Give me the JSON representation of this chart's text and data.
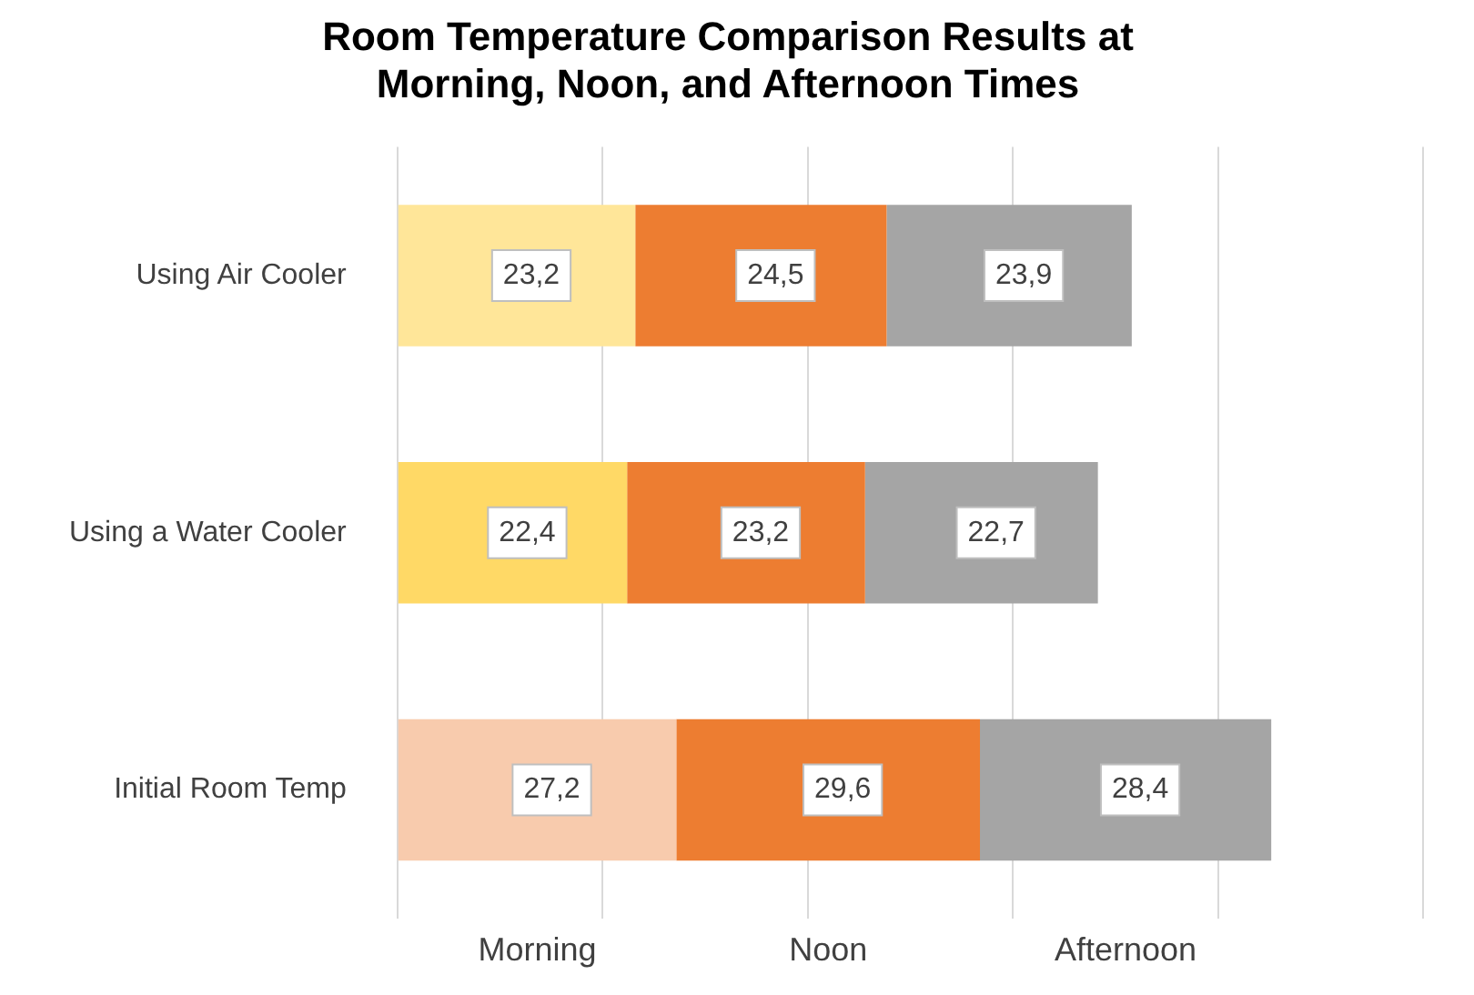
{
  "chart_data": {
    "type": "bar",
    "orientation": "horizontal",
    "stacked": true,
    "title": "Room Temperature Comparison Results at\nMorning, Noon, and Afternoon Times",
    "categories": [
      "Using Air Cooler",
      "Using a Water Cooler",
      "Initial Room Temp"
    ],
    "series": [
      {
        "name": "Morning",
        "colors": [
          "#ffe699",
          "#ffd966",
          "#f8cbad"
        ],
        "values": [
          23.2,
          22.4,
          27.2
        ],
        "value_labels": [
          "23,2",
          "22,4",
          "27,2"
        ]
      },
      {
        "name": "Noon",
        "color": "#ed7d31",
        "values": [
          24.5,
          23.2,
          29.6
        ],
        "value_labels": [
          "24,5",
          "23,2",
          "29,6"
        ]
      },
      {
        "name": "Afternoon",
        "color": "#a5a5a5",
        "values": [
          23.9,
          22.7,
          28.4
        ],
        "value_labels": [
          "23,9",
          "22,7",
          "28,4"
        ]
      }
    ],
    "xlim": [
      0,
      100
    ],
    "xticks": [
      {
        "value": 0,
        "label": null
      },
      {
        "value": 20,
        "label": null
      },
      {
        "value": 40,
        "label": null
      },
      {
        "value": 60,
        "label": null
      },
      {
        "value": 80,
        "label": null
      },
      {
        "value": 100,
        "label": null
      }
    ],
    "tick_labels": "y",
    "grid": "x",
    "legend": false
  }
}
